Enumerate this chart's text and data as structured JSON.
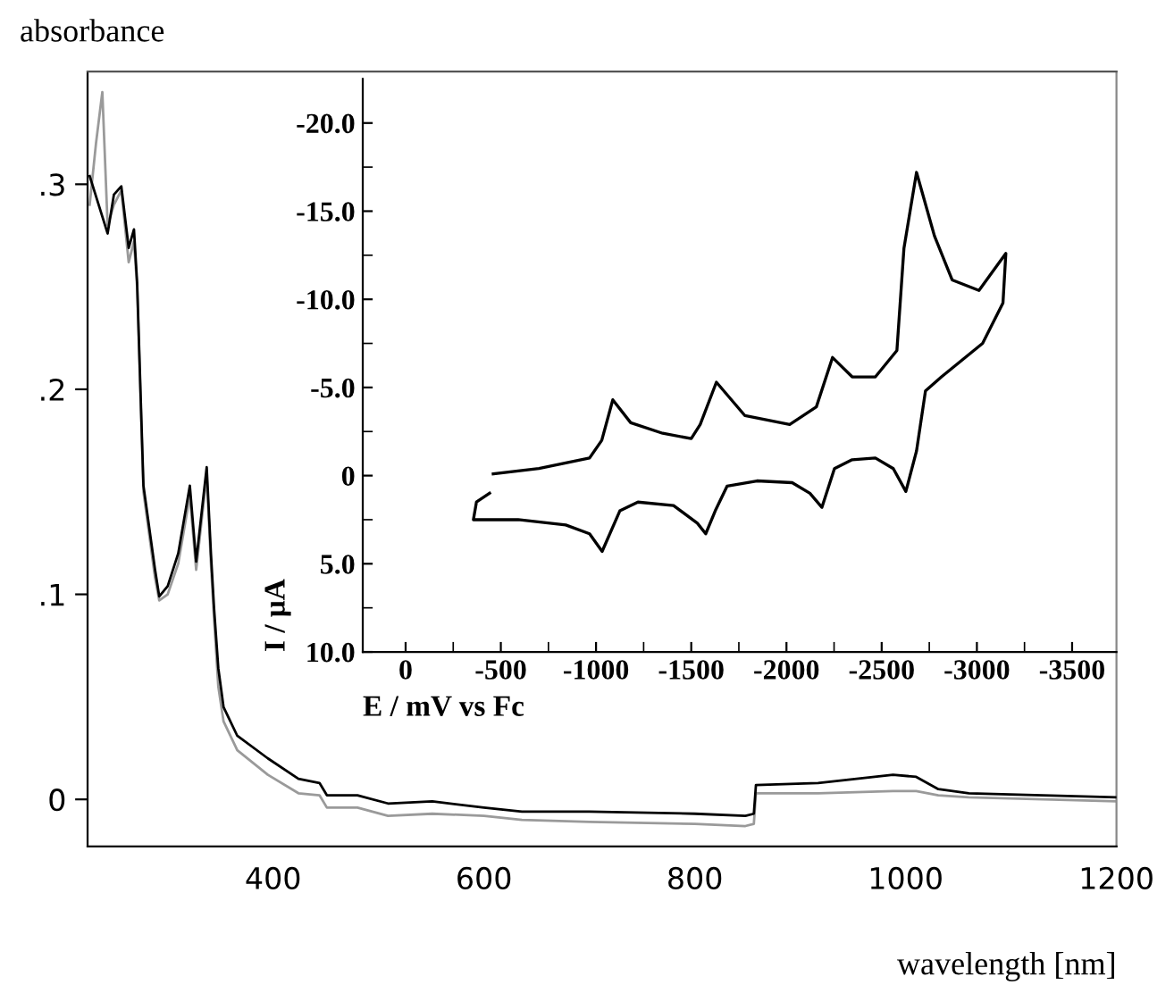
{
  "chart_data": [
    {
      "type": "line",
      "xlabel": "wavelength [nm]",
      "ylabel": "absorbance",
      "xlim": [
        224,
        1200
      ],
      "ylim": [
        -0.023,
        0.355
      ],
      "xticks": [
        400,
        600,
        800,
        1000,
        1200
      ],
      "yticks": [
        {
          "value": 0,
          "label": "0"
        },
        {
          "value": 0.1,
          "label": ".1"
        },
        {
          "value": 0.2,
          "label": ".2"
        },
        {
          "value": 0.3,
          "label": ".3"
        }
      ],
      "grid": false,
      "series": [
        {
          "color": "#000000",
          "x": [
            226,
            243,
            249,
            256,
            263,
            268,
            271,
            277,
            288,
            292,
            300,
            310,
            321,
            327,
            337,
            341,
            344,
            348,
            353,
            366,
            395,
            424,
            444,
            451,
            480,
            509,
            551,
            600,
            636,
            700,
            800,
            848,
            856,
            858,
            917,
            988,
            1010,
            1031,
            1060,
            1130,
            1200
          ],
          "values": [
            0.304,
            0.276,
            0.295,
            0.299,
            0.269,
            0.278,
            0.252,
            0.153,
            0.112,
            0.099,
            0.104,
            0.12,
            0.153,
            0.116,
            0.162,
            0.12,
            0.093,
            0.064,
            0.045,
            0.031,
            0.02,
            0.01,
            0.008,
            0.002,
            0.002,
            -0.002,
            -0.001,
            -0.004,
            -0.006,
            -0.006,
            -0.007,
            -0.008,
            -0.007,
            0.007,
            0.008,
            0.012,
            0.011,
            0.005,
            0.003,
            0.002,
            0.001
          ]
        },
        {
          "color": "#9a9a9a",
          "x": [
            226,
            232,
            238,
            243,
            249,
            256,
            263,
            268,
            271,
            277,
            288,
            292,
            300,
            310,
            321,
            327,
            337,
            341,
            344,
            348,
            353,
            366,
            395,
            424,
            444,
            451,
            480,
            509,
            551,
            600,
            636,
            700,
            800,
            848,
            856,
            858,
            917,
            988,
            1010,
            1031,
            1060,
            1130,
            1200
          ],
          "values": [
            0.29,
            0.32,
            0.345,
            0.28,
            0.29,
            0.297,
            0.262,
            0.272,
            0.25,
            0.15,
            0.108,
            0.097,
            0.1,
            0.115,
            0.148,
            0.112,
            0.158,
            0.115,
            0.088,
            0.055,
            0.038,
            0.024,
            0.012,
            0.003,
            0.002,
            -0.004,
            -0.004,
            -0.008,
            -0.007,
            -0.008,
            -0.01,
            -0.011,
            -0.012,
            -0.013,
            -0.012,
            0.003,
            0.003,
            0.004,
            0.004,
            0.002,
            0.001,
            0.0,
            -0.001
          ]
        }
      ]
    },
    {
      "type": "line",
      "xlabel": "E / mV vs Fc",
      "ylabel": "I / μA",
      "xlim": [
        225,
        -3733
      ],
      "ylim": [
        10,
        -22.5
      ],
      "xticks": [
        {
          "value": 0,
          "label": "0"
        },
        {
          "value": -500,
          "label": "-500"
        },
        {
          "value": -1000,
          "label": "-1000"
        },
        {
          "value": -1500,
          "label": "-1500"
        },
        {
          "value": -2000,
          "label": "-2000"
        },
        {
          "value": -2500,
          "label": "-2500"
        },
        {
          "value": -3000,
          "label": "-3000"
        },
        {
          "value": -3500,
          "label": "-3500"
        },
        {
          "value": -250,
          "label": null
        },
        {
          "value": -750,
          "label": null
        },
        {
          "value": -1250,
          "label": null
        },
        {
          "value": -1750,
          "label": null
        },
        {
          "value": -2250,
          "label": null
        },
        {
          "value": -2750,
          "label": null
        },
        {
          "value": -3250,
          "label": null
        }
      ],
      "yticks": [
        {
          "value": -20,
          "label": "-20.0"
        },
        {
          "value": -15,
          "label": "-15.0"
        },
        {
          "value": -10,
          "label": "-10.0"
        },
        {
          "value": -5,
          "label": "-5.0"
        },
        {
          "value": 0,
          "label": "0"
        },
        {
          "value": 5,
          "label": "5.0"
        },
        {
          "value": 10,
          "label": "10.0"
        },
        {
          "value": -17.5,
          "label": null
        },
        {
          "value": -12.5,
          "label": null
        },
        {
          "value": -7.5,
          "label": null
        },
        {
          "value": -2.5,
          "label": null
        },
        {
          "value": 2.5,
          "label": null
        },
        {
          "value": 7.5,
          "label": null
        }
      ],
      "grid": false,
      "series": [
        {
          "color": "#000000",
          "x": [
            -460,
            -700,
            -966,
            -1030,
            -1088,
            -1182,
            -1350,
            -1500,
            -1547,
            -1632,
            -1782,
            -2017,
            -2157,
            -2242,
            -2345,
            -2467,
            -2580,
            -2617,
            -2683,
            -2777,
            -2870,
            -3011,
            -3152,
            -3137,
            -3030,
            -2814,
            -2730,
            -2683,
            -2627,
            -2561,
            -2467,
            -2345,
            -2252,
            -2186,
            -2123,
            -2030,
            -1845,
            -1688,
            -1626,
            -1576,
            -1532,
            -1407,
            -1220,
            -1125,
            -1032,
            -966,
            -841,
            -591,
            -356,
            -372,
            -441
          ],
          "values": [
            -0.1,
            -0.4,
            -1.0,
            -2.0,
            -4.3,
            -3.0,
            -2.4,
            -2.1,
            -2.9,
            -5.3,
            -3.4,
            -2.9,
            -3.9,
            -6.7,
            -5.6,
            -5.6,
            -7.1,
            -12.9,
            -17.2,
            -13.6,
            -11.1,
            -10.5,
            -12.6,
            -9.8,
            -7.5,
            -5.6,
            -4.8,
            -1.4,
            0.9,
            -0.4,
            -1.0,
            -0.9,
            -0.4,
            1.8,
            1.0,
            0.4,
            0.3,
            0.6,
            2.0,
            3.3,
            2.7,
            1.7,
            1.5,
            2.0,
            4.3,
            3.3,
            2.8,
            2.5,
            2.5,
            1.5,
            1.0
          ]
        }
      ]
    }
  ]
}
